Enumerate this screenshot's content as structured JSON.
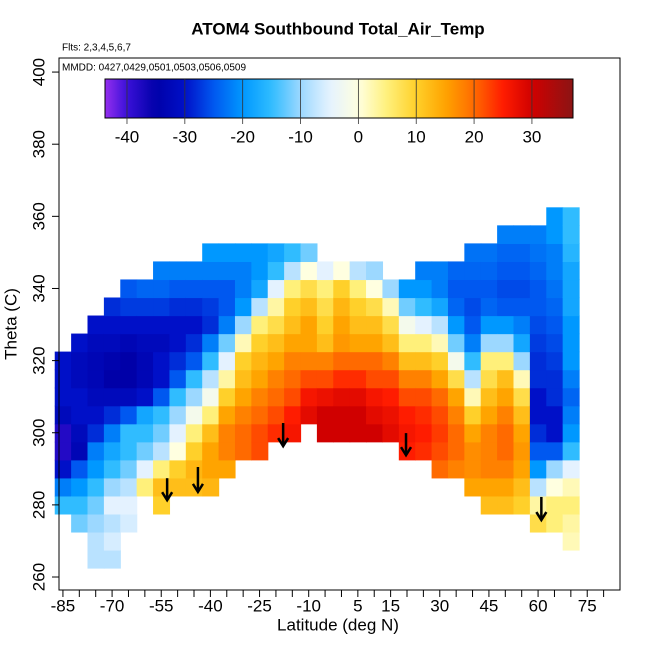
{
  "chart_data": {
    "type": "heatmap",
    "title": "ATOM4 Southbound Total_Air_Temp",
    "subtitle": "Flts: 2,3,4,5,6,7",
    "annotation": "MMDD: 0427,0429,0501,0503,0506,0509",
    "xlabel": "Latitude (deg N)",
    "ylabel": "Theta (C)",
    "xlim": [
      -86.2,
      85
    ],
    "ylim": [
      256.4,
      403.9
    ],
    "xticks": [
      -85,
      -70,
      -55,
      -40,
      -25,
      -10,
      5,
      15,
      30,
      45,
      60,
      75
    ],
    "xminorticks": [
      -80,
      -75,
      -65,
      -60,
      -50,
      -45,
      -35,
      -30,
      -20,
      -15,
      -5,
      0,
      10,
      20,
      25,
      35,
      40,
      50,
      55,
      65,
      70,
      80
    ],
    "yticks": [
      260,
      280,
      300,
      320,
      340,
      360,
      380,
      400
    ],
    "x": [
      -85,
      -80,
      -75,
      -70,
      -65,
      -60,
      -55,
      -50,
      -45,
      -40,
      -35,
      -30,
      -25,
      -20,
      -15,
      -10,
      -5,
      0,
      5,
      10,
      15,
      20,
      25,
      30,
      35,
      40,
      45,
      50,
      55,
      60,
      65,
      70
    ],
    "y": [
      265,
      270,
      275,
      280,
      285,
      290,
      295,
      300,
      305,
      310,
      315,
      320,
      325,
      330,
      335,
      340,
      345,
      350,
      355,
      360
    ],
    "cell_width": 5,
    "cell_height": 5,
    "z": [
      [
        null,
        null,
        null,
        -15,
        -22,
        -30,
        -38,
        -38,
        -32,
        -30,
        -30,
        -30,
        null,
        null,
        null,
        null,
        null,
        null,
        null,
        null
      ],
      [
        null,
        null,
        -12,
        -15,
        -20,
        -25,
        -33,
        -32,
        -30,
        -30,
        -32,
        -32,
        -30,
        null,
        null,
        null,
        null,
        null,
        null,
        null
      ],
      [
        -8,
        -8,
        -10,
        -12,
        -15,
        -20,
        -22,
        -28,
        -30,
        -32,
        -33,
        -33,
        -32,
        -30,
        null,
        null,
        null,
        null,
        null,
        null
      ],
      [
        -8,
        -6,
        -8,
        -5,
        -10,
        -15,
        -18,
        -22,
        -28,
        -32,
        -35,
        -34,
        -32,
        -30,
        -28,
        null,
        null,
        null,
        null,
        null
      ],
      [
        null,
        null,
        -6,
        -5,
        -8,
        -12,
        -15,
        -15,
        -25,
        -32,
        -35,
        -35,
        -33,
        -30,
        -27,
        -25,
        null,
        null,
        null,
        null
      ],
      [
        null,
        null,
        null,
        null,
        5,
        -5,
        -12,
        -15,
        -18,
        -30,
        -33,
        -33,
        -32,
        -30,
        -27,
        -24,
        null,
        null,
        null,
        null
      ],
      [
        null,
        null,
        null,
        10,
        12,
        5,
        -8,
        -12,
        -15,
        -25,
        -30,
        -30,
        -32,
        -30,
        -27,
        -24,
        -22,
        null,
        null,
        null
      ],
      [
        null,
        null,
        null,
        null,
        12,
        10,
        0,
        -5,
        -10,
        -15,
        -25,
        -28,
        -30,
        -30,
        -28,
        -25,
        -22,
        null,
        null,
        null
      ],
      [
        null,
        null,
        null,
        null,
        12,
        13,
        10,
        5,
        -2,
        -10,
        -15,
        -25,
        -28,
        -30,
        -28,
        -25,
        -22,
        null,
        null,
        null
      ],
      [
        null,
        null,
        null,
        null,
        13,
        15,
        15,
        12,
        5,
        -2,
        -8,
        -15,
        -22,
        -28,
        -27,
        -25,
        -22,
        -20,
        null,
        null
      ],
      [
        null,
        null,
        null,
        null,
        null,
        15,
        18,
        18,
        15,
        10,
        3,
        -5,
        -12,
        -22,
        -25,
        -25,
        -22,
        -20,
        null,
        null
      ],
      [
        null,
        null,
        null,
        null,
        null,
        null,
        20,
        20,
        18,
        15,
        12,
        10,
        2,
        -10,
        -20,
        -22,
        -22,
        -20,
        null,
        null
      ],
      [
        null,
        null,
        null,
        null,
        null,
        null,
        22,
        22,
        20,
        18,
        15,
        13,
        10,
        5,
        -8,
        -18,
        -20,
        -20,
        null,
        null
      ],
      [
        null,
        null,
        null,
        null,
        null,
        null,
        null,
        24,
        22,
        20,
        18,
        15,
        12,
        8,
        3,
        -5,
        -15,
        -18,
        null,
        null
      ],
      [
        null,
        null,
        null,
        null,
        null,
        null,
        null,
        26,
        25,
        22,
        20,
        18,
        15,
        12,
        10,
        5,
        -8,
        -15,
        null,
        null
      ],
      [
        null,
        null,
        null,
        null,
        null,
        null,
        null,
        null,
        28,
        26,
        22,
        18,
        15,
        15,
        12,
        8,
        0,
        -12,
        null,
        null
      ],
      [
        null,
        null,
        null,
        null,
        null,
        null,
        null,
        30,
        30,
        27,
        22,
        18,
        12,
        10,
        8,
        5,
        -5,
        null,
        null,
        null
      ],
      [
        null,
        null,
        null,
        null,
        null,
        null,
        null,
        30,
        30,
        28,
        24,
        20,
        16,
        15,
        13,
        10,
        0,
        null,
        null,
        null
      ],
      [
        null,
        null,
        null,
        null,
        null,
        null,
        null,
        30,
        30,
        28,
        24,
        20,
        15,
        12,
        10,
        5,
        -8,
        null,
        null,
        null
      ],
      [
        null,
        null,
        null,
        null,
        null,
        null,
        null,
        30,
        28,
        26,
        22,
        20,
        15,
        12,
        8,
        0,
        -10,
        null,
        null,
        null
      ],
      [
        null,
        null,
        null,
        null,
        null,
        null,
        null,
        28,
        27,
        25,
        22,
        18,
        12,
        8,
        2,
        -10,
        null,
        null,
        null,
        null
      ],
      [
        null,
        null,
        null,
        null,
        null,
        null,
        25,
        26,
        25,
        22,
        18,
        12,
        5,
        -2,
        -12,
        -20,
        null,
        null,
        null,
        null
      ],
      [
        null,
        null,
        null,
        null,
        null,
        null,
        24,
        25,
        24,
        22,
        18,
        12,
        5,
        -5,
        -15,
        -20,
        -22,
        null,
        null,
        null
      ],
      [
        null,
        null,
        null,
        null,
        null,
        20,
        22,
        23,
        22,
        20,
        15,
        10,
        2,
        -8,
        -18,
        -22,
        -22,
        null,
        null,
        null
      ],
      [
        null,
        null,
        null,
        null,
        null,
        18,
        20,
        20,
        18,
        15,
        8,
        -2,
        -12,
        -20,
        -24,
        -25,
        -24,
        null,
        null,
        null
      ],
      [
        null,
        null,
        null,
        null,
        15,
        17,
        17,
        15,
        10,
        2,
        -8,
        -15,
        -22,
        -25,
        -26,
        -25,
        -24,
        -23,
        null,
        null
      ],
      [
        null,
        null,
        null,
        12,
        15,
        18,
        18,
        18,
        15,
        12,
        8,
        5,
        -10,
        -20,
        -24,
        -25,
        -24,
        -23,
        null,
        null
      ],
      [
        null,
        null,
        null,
        12,
        15,
        18,
        20,
        20,
        18,
        15,
        12,
        5,
        -10,
        -20,
        -25,
        -26,
        -25,
        -24,
        -22,
        null
      ],
      [
        null,
        null,
        null,
        10,
        12,
        15,
        16,
        15,
        12,
        8,
        2,
        -10,
        -18,
        -22,
        -25,
        -26,
        -25,
        -24,
        -22,
        null
      ],
      [
        null,
        null,
        8,
        3,
        -8,
        -20,
        -25,
        -28,
        -30,
        -30,
        -28,
        -28,
        -27,
        -26,
        -25,
        -25,
        -24,
        -23,
        -22,
        null
      ],
      [
        null,
        null,
        5,
        5,
        0,
        -10,
        -25,
        -30,
        -30,
        -28,
        -28,
        -27,
        -26,
        -25,
        -24,
        -23,
        -22,
        -22,
        -20,
        -20
      ],
      [
        null,
        2,
        3,
        5,
        2,
        -5,
        -15,
        -20,
        -22,
        -24,
        -22,
        -20,
        -20,
        -20,
        -18,
        -18,
        -18,
        -16,
        -15,
        -15
      ]
    ],
    "colorbar": {
      "lim": [
        -43.8,
        37.1
      ],
      "ticks": [
        -40,
        -30,
        -20,
        -10,
        0,
        10,
        20,
        30
      ],
      "colorscale": [
        [
          -44,
          "#9a30f0"
        ],
        [
          -40,
          "#3a10d8"
        ],
        [
          -35,
          "#0000a8"
        ],
        [
          -30,
          "#0010c8"
        ],
        [
          -25,
          "#0058f0"
        ],
        [
          -20,
          "#0098ff"
        ],
        [
          -15,
          "#30bcff"
        ],
        [
          -10,
          "#9cd8ff"
        ],
        [
          -5,
          "#e4f2ff"
        ],
        [
          0,
          "#ffffe0"
        ],
        [
          5,
          "#fff07a"
        ],
        [
          10,
          "#ffd02a"
        ],
        [
          15,
          "#ffa400"
        ],
        [
          20,
          "#ff6a00"
        ],
        [
          25,
          "#ff1c00"
        ],
        [
          30,
          "#d00000"
        ],
        [
          37,
          "#8c1414"
        ]
      ]
    },
    "arrows": [
      {
        "x": -53.2,
        "y_from": 287.4,
        "y_to": 281.3
      },
      {
        "x": -43.8,
        "y_from": 290.5,
        "y_to": 283.6
      },
      {
        "x": -17.8,
        "y_from": 302.7,
        "y_to": 296.3
      },
      {
        "x": 19.7,
        "y_from": 299.9,
        "y_to": 293.8
      },
      {
        "x": 61,
        "y_from": 282.2,
        "y_to": 275.8
      }
    ]
  }
}
